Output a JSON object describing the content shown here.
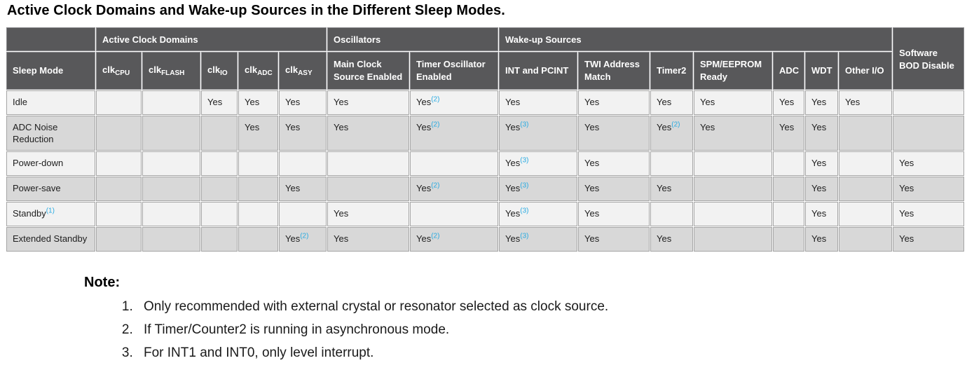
{
  "title": "Active Clock Domains and Wake-up Sources in the Different Sleep Modes.",
  "colors": {
    "header_bg": "#58585a",
    "header_text": "#ffffff",
    "row_light": "#f2f2f2",
    "row_shaded": "#d8d8d8",
    "cell_border": "#a5a5a5",
    "superscript_blue": "#29abe2"
  },
  "table": {
    "header_groups": [
      {
        "label": "",
        "colspan": 1,
        "rowspan": 1
      },
      {
        "label": "Active Clock Domains",
        "colspan": 5,
        "rowspan": 1
      },
      {
        "label": "Oscillators",
        "colspan": 2,
        "rowspan": 1
      },
      {
        "label": "Wake-up Sources",
        "colspan": 7,
        "rowspan": 1
      },
      {
        "label": "Software BOD Disable",
        "colspan": 1,
        "rowspan": 2
      }
    ],
    "column_headers": [
      {
        "text": "Sleep Mode"
      },
      {
        "text": "clk",
        "sub": "CPU"
      },
      {
        "text": "clk",
        "sub": "FLASH"
      },
      {
        "text": "clk",
        "sub": "IO"
      },
      {
        "text": "clk",
        "sub": "ADC"
      },
      {
        "text": "clk",
        "sub": "ASY"
      },
      {
        "text": "Main Clock Source Enabled"
      },
      {
        "text": "Timer Oscillator Enabled"
      },
      {
        "text": "INT and PCINT"
      },
      {
        "text": "TWI Address Match"
      },
      {
        "text": "Timer2"
      },
      {
        "text": "SPM/EEPROM Ready"
      },
      {
        "text": "ADC"
      },
      {
        "text": "WDT"
      },
      {
        "text": "Other I/O"
      }
    ],
    "rows": [
      {
        "mode": {
          "t": "Idle"
        },
        "cells": [
          {
            "t": ""
          },
          {
            "t": ""
          },
          {
            "t": "Yes"
          },
          {
            "t": "Yes"
          },
          {
            "t": "Yes"
          },
          {
            "t": "Yes"
          },
          {
            "t": "Yes",
            "s": "(2)"
          },
          {
            "t": "Yes"
          },
          {
            "t": "Yes"
          },
          {
            "t": "Yes"
          },
          {
            "t": "Yes"
          },
          {
            "t": "Yes"
          },
          {
            "t": "Yes"
          },
          {
            "t": "Yes"
          },
          {
            "t": ""
          }
        ]
      },
      {
        "mode": {
          "t": "ADC Noise Reduction"
        },
        "cells": [
          {
            "t": ""
          },
          {
            "t": ""
          },
          {
            "t": ""
          },
          {
            "t": "Yes"
          },
          {
            "t": "Yes"
          },
          {
            "t": "Yes"
          },
          {
            "t": "Yes",
            "s": "(2)"
          },
          {
            "t": "Yes",
            "s": "(3)"
          },
          {
            "t": "Yes"
          },
          {
            "t": "Yes",
            "s": "(2)"
          },
          {
            "t": "Yes"
          },
          {
            "t": "Yes"
          },
          {
            "t": "Yes"
          },
          {
            "t": ""
          },
          {
            "t": ""
          }
        ]
      },
      {
        "mode": {
          "t": "Power-down"
        },
        "cells": [
          {
            "t": ""
          },
          {
            "t": ""
          },
          {
            "t": ""
          },
          {
            "t": ""
          },
          {
            "t": ""
          },
          {
            "t": ""
          },
          {
            "t": ""
          },
          {
            "t": "Yes",
            "s": "(3)"
          },
          {
            "t": "Yes"
          },
          {
            "t": ""
          },
          {
            "t": ""
          },
          {
            "t": ""
          },
          {
            "t": "Yes"
          },
          {
            "t": ""
          },
          {
            "t": "Yes"
          }
        ]
      },
      {
        "mode": {
          "t": "Power-save"
        },
        "cells": [
          {
            "t": ""
          },
          {
            "t": ""
          },
          {
            "t": ""
          },
          {
            "t": ""
          },
          {
            "t": "Yes"
          },
          {
            "t": ""
          },
          {
            "t": "Yes",
            "s": "(2)"
          },
          {
            "t": "Yes",
            "s": "(3)"
          },
          {
            "t": "Yes"
          },
          {
            "t": "Yes"
          },
          {
            "t": ""
          },
          {
            "t": ""
          },
          {
            "t": "Yes"
          },
          {
            "t": ""
          },
          {
            "t": "Yes"
          }
        ]
      },
      {
        "mode": {
          "t": "Standby",
          "s": "(1)"
        },
        "cells": [
          {
            "t": ""
          },
          {
            "t": ""
          },
          {
            "t": ""
          },
          {
            "t": ""
          },
          {
            "t": ""
          },
          {
            "t": "Yes"
          },
          {
            "t": ""
          },
          {
            "t": "Yes",
            "s": "(3)"
          },
          {
            "t": "Yes"
          },
          {
            "t": ""
          },
          {
            "t": ""
          },
          {
            "t": ""
          },
          {
            "t": "Yes"
          },
          {
            "t": ""
          },
          {
            "t": "Yes"
          }
        ]
      },
      {
        "mode": {
          "t": "Extended Standby"
        },
        "cells": [
          {
            "t": ""
          },
          {
            "t": ""
          },
          {
            "t": ""
          },
          {
            "t": ""
          },
          {
            "t": "Yes",
            "s": "(2)"
          },
          {
            "t": "Yes"
          },
          {
            "t": "Yes",
            "s": "(2)"
          },
          {
            "t": "Yes",
            "s": "(3)"
          },
          {
            "t": "Yes"
          },
          {
            "t": "Yes"
          },
          {
            "t": ""
          },
          {
            "t": ""
          },
          {
            "t": "Yes"
          },
          {
            "t": ""
          },
          {
            "t": "Yes"
          }
        ]
      }
    ]
  },
  "note": {
    "heading": "Note:",
    "items": [
      "Only recommended with external crystal or resonator selected as clock source.",
      "If Timer/Counter2 is running in asynchronous mode.",
      "For INT1 and INT0, only level interrupt."
    ]
  }
}
